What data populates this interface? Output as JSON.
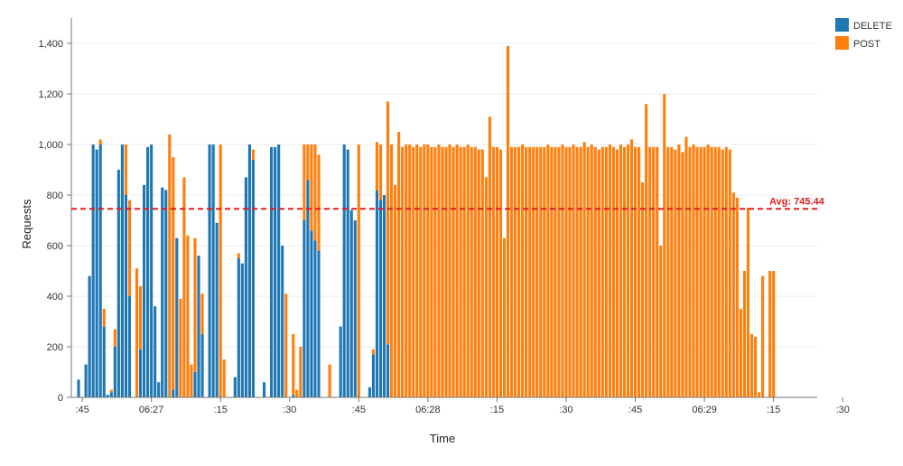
{
  "chart_data": {
    "type": "bar",
    "stacked": true,
    "xlabel": "Time",
    "ylabel": "Requests",
    "ylim": [
      0,
      1500
    ],
    "y_ticks": [
      0,
      200,
      400,
      600,
      800,
      1000,
      1200,
      1400
    ],
    "y_tick_labels": [
      "0",
      "200",
      "400",
      "600",
      "800",
      "1,000",
      "1,200",
      "1,400"
    ],
    "grid": "horizontal",
    "legend_position": "top-right",
    "x_tick_labels": [
      {
        "index": 2,
        "label": ":45"
      },
      {
        "index": 21,
        "label": "06:27"
      },
      {
        "index": 40,
        "label": ":15"
      },
      {
        "index": 59,
        "label": ":30"
      },
      {
        "index": 78,
        "label": ":45"
      },
      {
        "index": 97,
        "label": "06:28"
      },
      {
        "index": 116,
        "label": ":15"
      },
      {
        "index": 135,
        "label": ":30"
      },
      {
        "index": 154,
        "label": ":45"
      },
      {
        "index": 173,
        "label": "06:29"
      },
      {
        "index": 192,
        "label": ":15"
      },
      {
        "index": 211,
        "label": ":30"
      },
      {
        "index": 230,
        "label": ":45"
      }
    ],
    "average": {
      "value": 745.44,
      "label": "Avg: 745.44",
      "color": "#e31a1c"
    },
    "series": [
      {
        "name": "DELETE",
        "color": "#1f78b4",
        "values": [
          0,
          70,
          0,
          130,
          480,
          1000,
          980,
          1000,
          280,
          10,
          20,
          200,
          900,
          1000,
          800,
          400,
          0,
          0,
          190,
          840,
          990,
          1000,
          360,
          60,
          830,
          820,
          0,
          30,
          630,
          0,
          0,
          0,
          0,
          100,
          560,
          250,
          0,
          1000,
          1000,
          690,
          0,
          0,
          0,
          0,
          80,
          550,
          530,
          870,
          1000,
          940,
          0,
          0,
          60,
          0,
          990,
          990,
          1000,
          600,
          0,
          0,
          10,
          0,
          0,
          700,
          860,
          660,
          620,
          580,
          0,
          0,
          0,
          0,
          0,
          280,
          1000,
          980,
          740,
          700,
          0,
          0,
          0,
          40,
          170,
          820,
          780,
          800,
          210,
          0,
          0,
          0,
          0,
          0,
          0,
          0,
          0,
          0,
          0,
          0,
          0,
          0,
          0,
          0,
          0,
          0,
          0,
          0,
          0,
          0,
          0,
          0,
          0,
          0,
          0,
          0,
          0,
          0,
          0,
          0,
          0,
          0,
          0,
          0,
          0,
          0,
          0,
          0,
          0,
          0,
          0,
          0,
          0,
          0,
          0,
          0,
          0,
          0,
          0,
          0,
          0,
          0,
          0,
          0,
          0,
          0,
          0,
          0,
          0,
          0,
          0,
          0,
          0,
          0,
          0,
          0,
          0,
          0,
          0,
          0,
          0,
          0,
          0,
          0,
          0,
          0,
          0,
          0,
          0,
          0,
          0,
          0,
          0,
          0,
          0,
          0,
          0,
          0,
          0,
          0,
          0,
          0,
          0,
          0,
          0,
          0,
          0,
          0,
          0,
          0,
          0,
          0,
          0,
          0,
          0,
          0,
          0,
          0,
          0,
          0,
          0,
          0,
          0,
          0,
          0,
          0
        ]
      },
      {
        "name": "POST",
        "color": "#ff7f0e",
        "values": [
          0,
          0,
          0,
          0,
          0,
          0,
          0,
          20,
          70,
          0,
          10,
          70,
          0,
          0,
          200,
          380,
          0,
          510,
          250,
          0,
          0,
          0,
          0,
          0,
          0,
          0,
          1040,
          920,
          0,
          390,
          870,
          640,
          130,
          530,
          0,
          160,
          0,
          0,
          0,
          0,
          1000,
          150,
          0,
          0,
          0,
          20,
          0,
          0,
          0,
          40,
          0,
          0,
          0,
          0,
          0,
          0,
          0,
          0,
          410,
          0,
          240,
          30,
          200,
          300,
          140,
          340,
          380,
          380,
          0,
          0,
          130,
          0,
          0,
          0,
          0,
          0,
          0,
          0,
          1000,
          0,
          0,
          0,
          20,
          190,
          220,
          0,
          960,
          1000,
          840,
          1050,
          990,
          1000,
          1000,
          990,
          1000,
          990,
          1000,
          1000,
          990,
          990,
          1000,
          990,
          990,
          1000,
          990,
          1000,
          990,
          990,
          1000,
          990,
          990,
          980,
          980,
          870,
          1110,
          990,
          990,
          980,
          630,
          1390,
          990,
          990,
          990,
          1000,
          990,
          990,
          990,
          990,
          990,
          990,
          1000,
          990,
          990,
          990,
          1000,
          990,
          990,
          1000,
          990,
          990,
          1010,
          990,
          1000,
          990,
          980,
          990,
          990,
          1000,
          990,
          980,
          1000,
          990,
          1000,
          1020,
          990,
          990,
          850,
          1160,
          990,
          990,
          990,
          600,
          1200,
          990,
          990,
          980,
          1000,
          970,
          1030,
          990,
          1000,
          990,
          990,
          990,
          1000,
          990,
          990,
          990,
          980,
          990,
          980,
          810,
          790,
          350,
          500,
          750,
          250,
          240,
          20,
          480,
          0,
          500,
          500
        ]
      }
    ]
  }
}
